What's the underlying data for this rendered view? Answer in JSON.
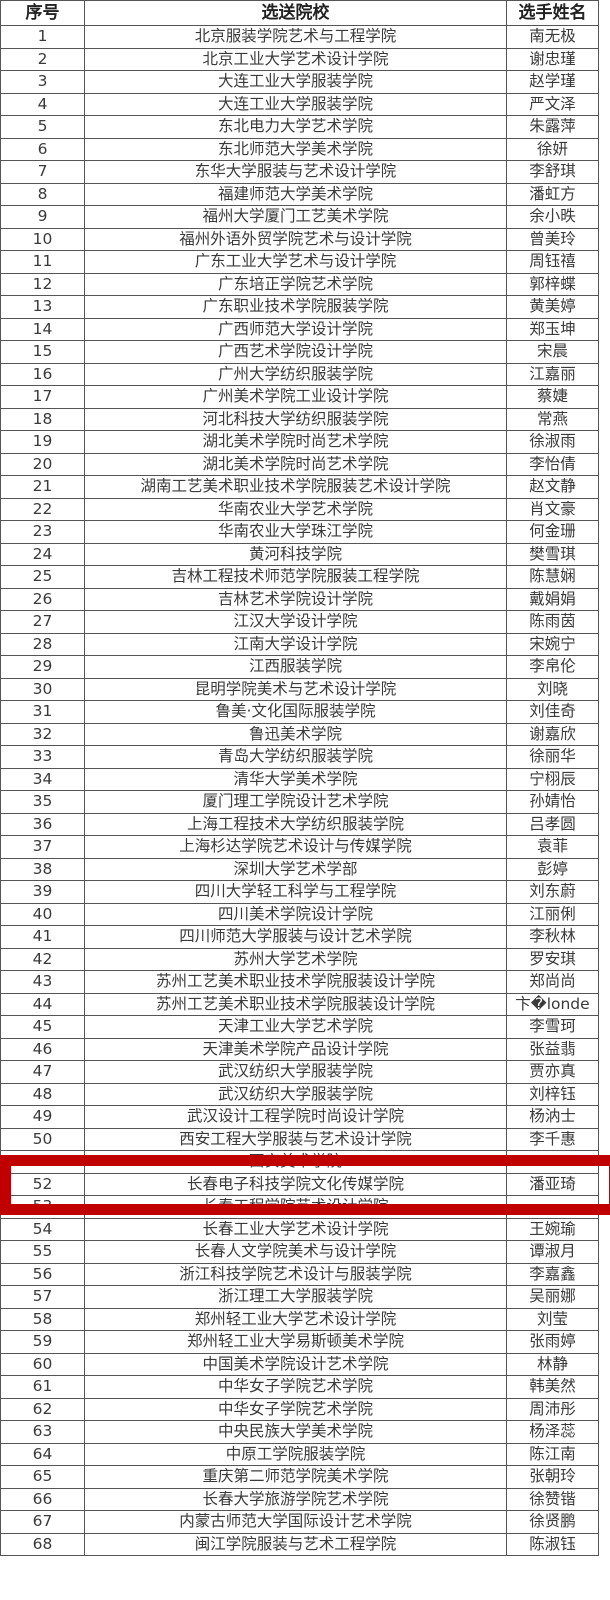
{
  "header": {
    "no": "序号",
    "school": "选送院校",
    "name": "选手姓名"
  },
  "highlight_color": "#c00000",
  "highlighted_row": 52,
  "rows": [
    {
      "no": "1",
      "school": "北京服装学院艺术与工程学院",
      "name": "南无极"
    },
    {
      "no": "2",
      "school": "北京工业大学艺术设计学院",
      "name": "谢忠瑾"
    },
    {
      "no": "3",
      "school": "大连工业大学服装学院",
      "name": "赵学瑾"
    },
    {
      "no": "4",
      "school": "大连工业大学服装学院",
      "name": "严文泽"
    },
    {
      "no": "5",
      "school": "东北电力大学艺术学院",
      "name": "朱露萍"
    },
    {
      "no": "6",
      "school": "东北师范大学美术学院",
      "name": "徐妍"
    },
    {
      "no": "7",
      "school": "东华大学服装与艺术设计学院",
      "name": "李舒琪"
    },
    {
      "no": "8",
      "school": "福建师范大学美术学院",
      "name": "潘虹方"
    },
    {
      "no": "9",
      "school": "福州大学厦门工艺美术学院",
      "name": "余小昳"
    },
    {
      "no": "10",
      "school": "福州外语外贸学院艺术与设计学院",
      "name": "曾美玲"
    },
    {
      "no": "11",
      "school": "广东工业大学艺术与设计学院",
      "name": "周钰禧"
    },
    {
      "no": "12",
      "school": "广东培正学院艺术学院",
      "name": "郭梓蝶"
    },
    {
      "no": "13",
      "school": "广东职业技术学院服装学院",
      "name": "黄美婷"
    },
    {
      "no": "14",
      "school": "广西师范大学设计学院",
      "name": "郑玉坤"
    },
    {
      "no": "15",
      "school": "广西艺术学院设计学院",
      "name": "宋晨"
    },
    {
      "no": "16",
      "school": "广州大学纺织服装学院",
      "name": "江嘉丽"
    },
    {
      "no": "17",
      "school": "广州美术学院工业设计学院",
      "name": "蔡婕"
    },
    {
      "no": "18",
      "school": "河北科技大学纺织服装学院",
      "name": "常燕"
    },
    {
      "no": "19",
      "school": "湖北美术学院时尚艺术学院",
      "name": "徐淑雨"
    },
    {
      "no": "20",
      "school": "湖北美术学院时尚艺术学院",
      "name": "李怡倩"
    },
    {
      "no": "21",
      "school": "湖南工艺美术职业技术学院服装艺术设计学院",
      "name": "赵文静"
    },
    {
      "no": "22",
      "school": "华南农业大学艺术学院",
      "name": "肖文豪"
    },
    {
      "no": "23",
      "school": "华南农业大学珠江学院",
      "name": "何金珊"
    },
    {
      "no": "24",
      "school": "黄河科技学院",
      "name": "樊雪琪"
    },
    {
      "no": "25",
      "school": "吉林工程技术师范学院服装工程学院",
      "name": "陈慧娴"
    },
    {
      "no": "26",
      "school": "吉林艺术学院设计学院",
      "name": "戴娟娟"
    },
    {
      "no": "27",
      "school": "江汉大学设计学院",
      "name": "陈雨茵"
    },
    {
      "no": "28",
      "school": "江南大学设计学院",
      "name": "宋婉宁"
    },
    {
      "no": "29",
      "school": "江西服装学院",
      "name": "李帛伦"
    },
    {
      "no": "30",
      "school": "昆明学院美术与艺术设计学院",
      "name": "刘晓"
    },
    {
      "no": "31",
      "school": "鲁美·文化国际服装学院",
      "name": "刘佳奇"
    },
    {
      "no": "32",
      "school": "鲁迅美术学院",
      "name": "谢嘉欣"
    },
    {
      "no": "33",
      "school": "青岛大学纺织服装学院",
      "name": "徐丽华"
    },
    {
      "no": "34",
      "school": "清华大学美术学院",
      "name": "宁栩辰"
    },
    {
      "no": "35",
      "school": "厦门理工学院设计艺术学院",
      "name": "孙婧怡"
    },
    {
      "no": "36",
      "school": "上海工程技术大学纺织服装学院",
      "name": "吕孝圆"
    },
    {
      "no": "37",
      "school": "上海杉达学院艺术设计与传媒学院",
      "name": "袁菲"
    },
    {
      "no": "38",
      "school": "深圳大学艺术学部",
      "name": "彭婷"
    },
    {
      "no": "39",
      "school": "四川大学轻工科学与工程学院",
      "name": "刘东蔚"
    },
    {
      "no": "40",
      "school": "四川美术学院设计学院",
      "name": "江丽俐"
    },
    {
      "no": "41",
      "school": "四川师范大学服装与设计艺术学院",
      "name": "李秋林"
    },
    {
      "no": "42",
      "school": "苏州大学艺术学院",
      "name": "罗安琪"
    },
    {
      "no": "43",
      "school": "苏州工艺美术职业技术学院服装设计学院",
      "name": "郑尚尚"
    },
    {
      "no": "44",
      "school": "苏州工艺美术职业技术学院服装设计学院",
      "name": "卞�londe"
    },
    {
      "no": "45",
      "school": "天津工业大学艺术学院",
      "name": "李雪珂"
    },
    {
      "no": "46",
      "school": "天津美术学院产品设计学院",
      "name": "张益翡"
    },
    {
      "no": "47",
      "school": "武汉纺织大学服装学院",
      "name": "贾亦真"
    },
    {
      "no": "48",
      "school": "武汉纺织大学服装学院",
      "name": "刘梓钰"
    },
    {
      "no": "49",
      "school": "武汉设计工程学院时尚设计学院",
      "name": "杨汭士"
    },
    {
      "no": "50",
      "school": "西安工程大学服装与艺术设计学院",
      "name": "李千惠"
    },
    {
      "no": "51",
      "school": "西安美术学院",
      "name": ""
    },
    {
      "no": "52",
      "school": "长春电子科技学院文化传媒学院",
      "name": "潘亚琦"
    },
    {
      "no": "53",
      "school": "长春工程学院艺术设计学院",
      "name": ""
    },
    {
      "no": "54",
      "school": "长春工业大学艺术设计学院",
      "name": "王婉瑜"
    },
    {
      "no": "55",
      "school": "长春人文学院美术与设计学院",
      "name": "谭淑月"
    },
    {
      "no": "56",
      "school": "浙江科技学院艺术设计与服装学院",
      "name": "李嘉鑫"
    },
    {
      "no": "57",
      "school": "浙江理工大学服装学院",
      "name": "吴丽娜"
    },
    {
      "no": "58",
      "school": "郑州轻工业大学艺术设计学院",
      "name": "刘莹"
    },
    {
      "no": "59",
      "school": "郑州轻工业大学易斯顿美术学院",
      "name": "张雨婷"
    },
    {
      "no": "60",
      "school": "中国美术学院设计艺术学院",
      "name": "林静"
    },
    {
      "no": "61",
      "school": "中华女子学院艺术学院",
      "name": "韩美然"
    },
    {
      "no": "62",
      "school": "中华女子学院艺术学院",
      "name": "周沛彤"
    },
    {
      "no": "63",
      "school": "中央民族大学美术学院",
      "name": "杨泽蕊"
    },
    {
      "no": "64",
      "school": "中原工学院服装学院",
      "name": "陈江南"
    },
    {
      "no": "65",
      "school": "重庆第二师范学院美术学院",
      "name": "张朝玲"
    },
    {
      "no": "66",
      "school": "长春大学旅游学院艺术学院",
      "name": "徐赞锴"
    },
    {
      "no": "67",
      "school": "内蒙古师范大学国际设计艺术学院",
      "name": "徐贤鹏"
    },
    {
      "no": "68",
      "school": "闽江学院服装与艺术工程学院",
      "name": "陈淑钰"
    }
  ]
}
